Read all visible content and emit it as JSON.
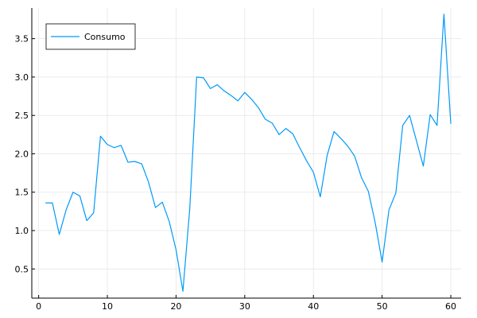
{
  "chart_data": {
    "type": "line",
    "xlim": [
      -1,
      61.5
    ],
    "ylim": [
      0.12,
      3.9
    ],
    "xticks": [
      0,
      10,
      20,
      30,
      40,
      50,
      60
    ],
    "yticks": [
      0.5,
      1.0,
      1.5,
      2.0,
      2.5,
      3.0,
      3.5
    ],
    "xtick_labels": [
      "0",
      "10",
      "20",
      "30",
      "40",
      "50",
      "60"
    ],
    "ytick_labels": [
      "0.5",
      "1.0",
      "1.5",
      "2.0",
      "2.5",
      "3.0",
      "3.5"
    ],
    "grid": true,
    "legend_position": "top-left",
    "series": [
      {
        "name": "Consumo",
        "color": "#009AFA",
        "x": [
          1,
          2,
          3,
          4,
          5,
          6,
          7,
          8,
          9,
          10,
          11,
          12,
          13,
          14,
          15,
          16,
          17,
          18,
          19,
          20,
          21,
          22,
          23,
          24,
          25,
          26,
          27,
          28,
          29,
          30,
          31,
          32,
          33,
          34,
          35,
          36,
          37,
          38,
          39,
          40,
          41,
          42,
          43,
          44,
          45,
          46,
          47,
          48,
          49,
          50,
          51,
          52,
          53,
          54,
          55,
          56,
          57,
          58,
          59,
          60
        ],
        "y": [
          1.36,
          1.36,
          0.95,
          1.27,
          1.5,
          1.45,
          1.13,
          1.23,
          2.23,
          2.12,
          2.08,
          2.11,
          1.89,
          1.9,
          1.87,
          1.63,
          1.3,
          1.37,
          1.12,
          0.75,
          0.21,
          1.29,
          3.0,
          2.99,
          2.85,
          2.9,
          2.82,
          2.76,
          2.69,
          2.8,
          2.71,
          2.6,
          2.45,
          2.4,
          2.25,
          2.33,
          2.26,
          2.08,
          1.91,
          1.76,
          1.44,
          1.98,
          2.29,
          2.2,
          2.1,
          1.97,
          1.69,
          1.51,
          1.1,
          0.59,
          1.27,
          1.49,
          2.37,
          2.5,
          2.17,
          1.84,
          2.51,
          2.37,
          3.82,
          2.39
        ]
      }
    ]
  }
}
